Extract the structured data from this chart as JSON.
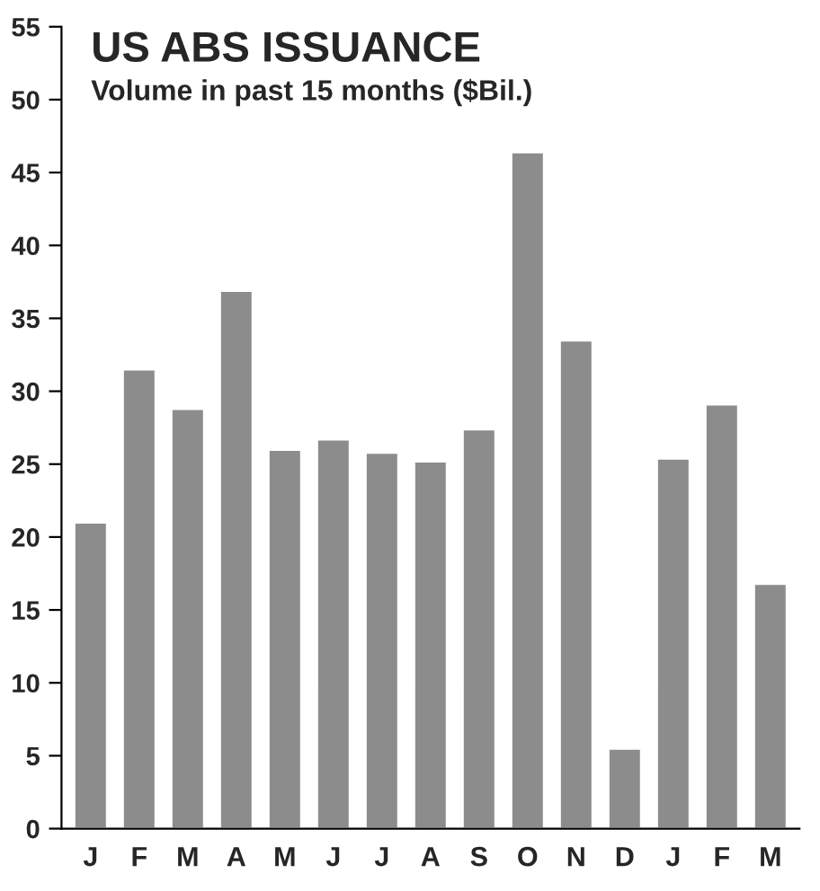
{
  "chart_data": {
    "type": "bar",
    "title": "US ABS ISSUANCE",
    "subtitle": "Volume in past 15 months ($Bil.)",
    "categories": [
      "J",
      "F",
      "M",
      "A",
      "M",
      "J",
      "J",
      "A",
      "S",
      "O",
      "N",
      "D",
      "J",
      "F",
      "M"
    ],
    "values": [
      21,
      31.5,
      28.8,
      36.9,
      26,
      26.7,
      25.8,
      25.2,
      27.4,
      46.4,
      33.5,
      5.5,
      25.4,
      29.1,
      16.8
    ],
    "color": "#8c8c8c",
    "ylim": [
      0,
      55
    ],
    "yticks": [
      0,
      5,
      10,
      15,
      20,
      25,
      30,
      35,
      40,
      45,
      50,
      55
    ],
    "grid": false
  }
}
